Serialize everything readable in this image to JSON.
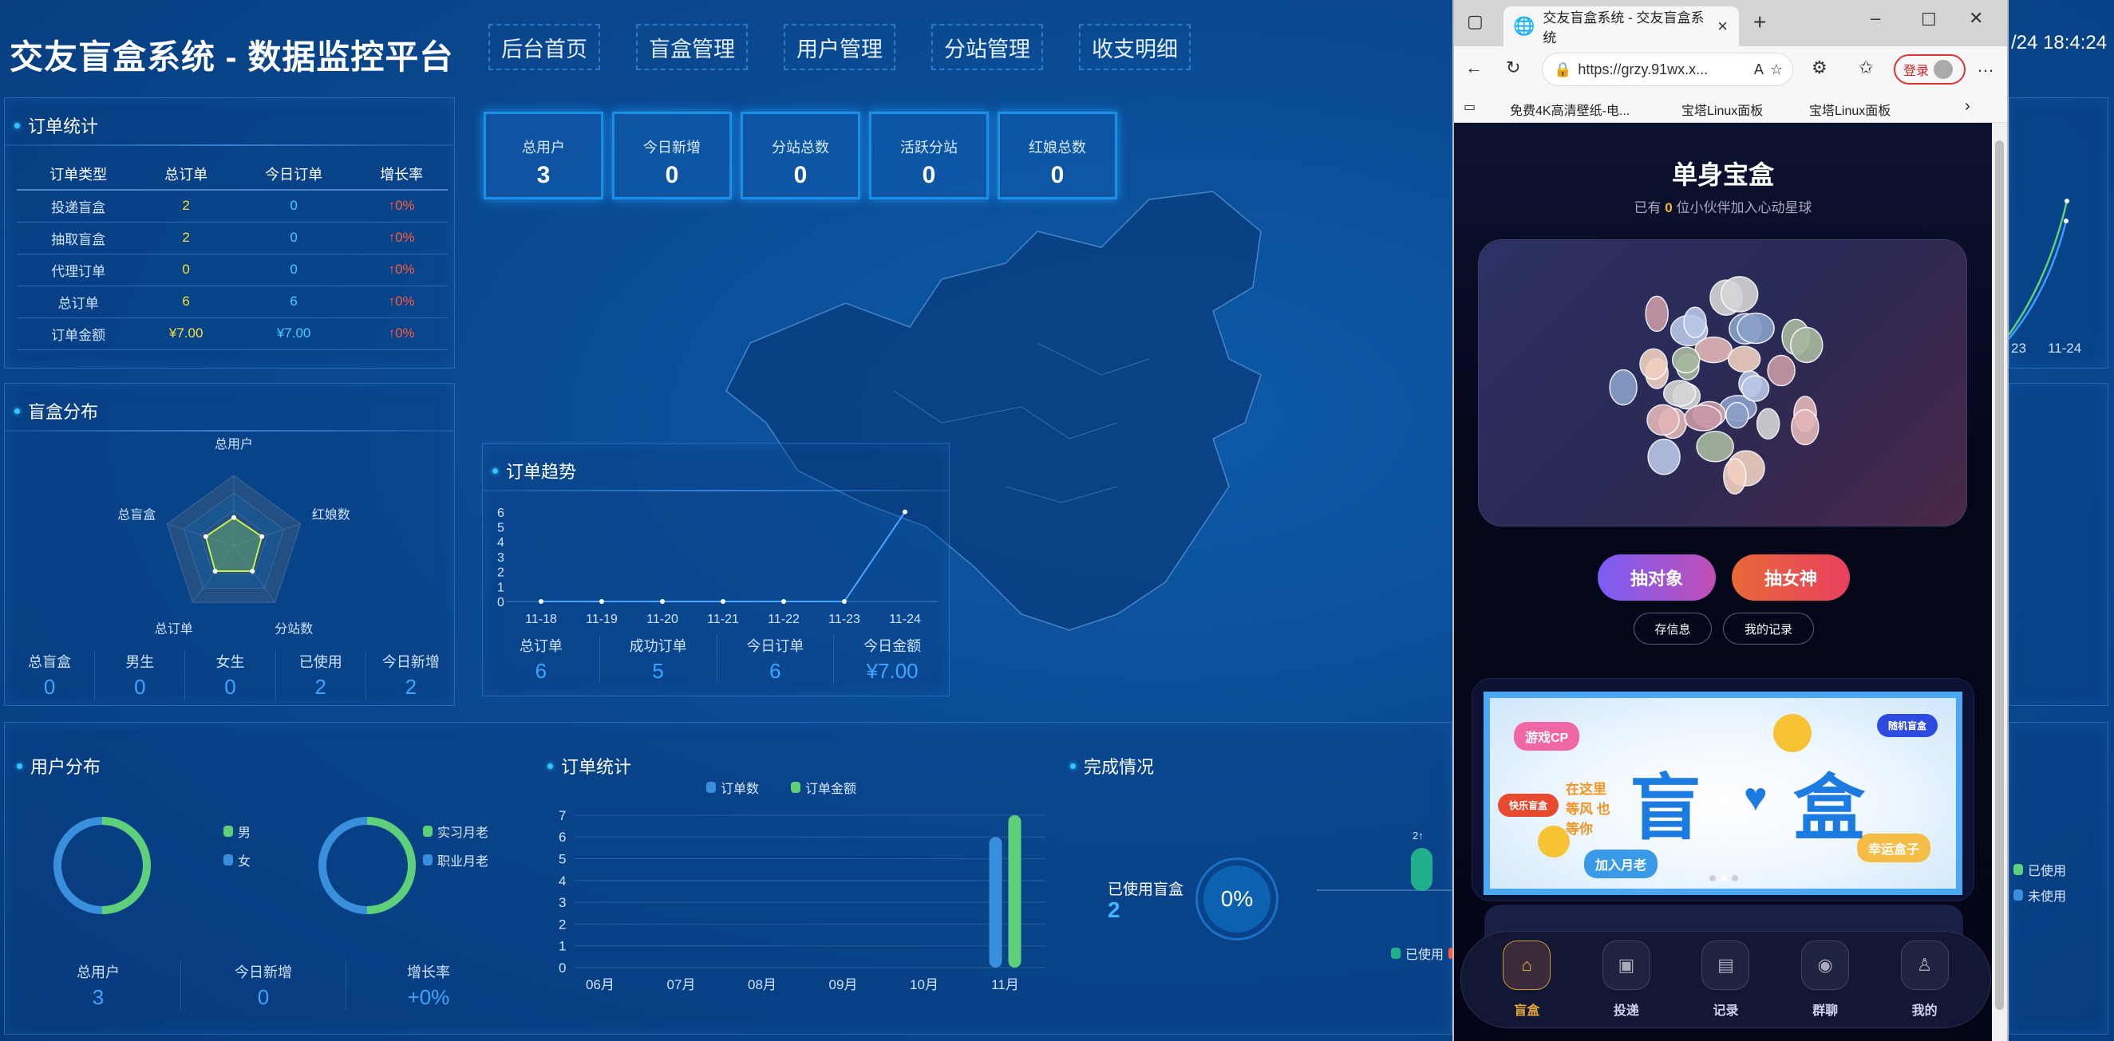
{
  "header": {
    "title": "交友盲盒系统 - 数据监控平台",
    "nav": [
      "后台首页",
      "盲盒管理",
      "用户管理",
      "分站管理",
      "收支明细"
    ],
    "datetime": "/24 18:4:24"
  },
  "order_stats": {
    "title": "订单统计",
    "columns": [
      "订单类型",
      "总订单",
      "今日订单",
      "增长率"
    ],
    "rows": [
      [
        "投递盲盒",
        "2",
        "0",
        "↑0%"
      ],
      [
        "抽取盲盒",
        "2",
        "0",
        "↑0%"
      ],
      [
        "代理订单",
        "0",
        "0",
        "↑0%"
      ],
      [
        "总订单",
        "6",
        "6",
        "↑0%"
      ],
      [
        "订单金额",
        "¥7.00",
        "¥7.00",
        "↑0%"
      ]
    ]
  },
  "box_dist": {
    "title": "盲盒分布",
    "radar_labels": [
      "总用户",
      "红娘数",
      "分站数",
      "总订单",
      "总盲盒"
    ],
    "radar_values": [
      0.4,
      0.42,
      0.45,
      0.45,
      0.42
    ],
    "stats": [
      {
        "label": "总盲盒",
        "value": "0"
      },
      {
        "label": "男生",
        "value": "0"
      },
      {
        "label": "女生",
        "value": "0"
      },
      {
        "label": "已使用",
        "value": "2"
      },
      {
        "label": "今日新增",
        "value": "2"
      }
    ]
  },
  "cards": [
    {
      "label": "总用户",
      "value": "3"
    },
    {
      "label": "今日新增",
      "value": "0"
    },
    {
      "label": "分站总数",
      "value": "0"
    },
    {
      "label": "活跃分站",
      "value": "0"
    },
    {
      "label": "红娘总数",
      "value": "0"
    }
  ],
  "trend": {
    "title": "订单趋势",
    "y_ticks": [
      "0",
      "1",
      "2",
      "3",
      "4",
      "5",
      "6"
    ],
    "x": [
      "11-18",
      "11-19",
      "11-20",
      "11-21",
      "11-22",
      "11-23",
      "11-24"
    ],
    "values": [
      0,
      0,
      0,
      0,
      0,
      0,
      6
    ],
    "stats": [
      {
        "label": "总订单",
        "value": "6"
      },
      {
        "label": "成功订单",
        "value": "5"
      },
      {
        "label": "今日订单",
        "value": "6"
      },
      {
        "label": "今日金额",
        "value": "¥7.00"
      }
    ]
  },
  "user_dist": {
    "title": "用户分布",
    "legend1": [
      "男",
      "女"
    ],
    "legend2": [
      "实习月老",
      "职业月老"
    ],
    "stats": [
      {
        "label": "总用户",
        "value": "3"
      },
      {
        "label": "今日新增",
        "value": "0"
      },
      {
        "label": "增长率",
        "value": "+0%"
      }
    ]
  },
  "bar": {
    "title": "订单统计",
    "legend": [
      "订单数",
      "订单金额"
    ],
    "y_ticks": [
      "0",
      "1",
      "2",
      "3",
      "4",
      "5",
      "6",
      "7"
    ],
    "categories": [
      "06月",
      "07月",
      "08月",
      "09月",
      "10月",
      "11月"
    ],
    "series": [
      {
        "name": "订单数",
        "values": [
          0,
          0,
          0,
          0,
          0,
          6
        ]
      },
      {
        "name": "订单金额",
        "values": [
          0,
          0,
          0,
          0,
          0,
          7
        ]
      }
    ]
  },
  "completion": {
    "title": "完成情况",
    "used_label": "已使用盲盒",
    "used_value": "2",
    "percent": "0%",
    "bar_label": "2↑",
    "legend": [
      "已使用"
    ]
  },
  "right_strip": {
    "x_labels": [
      "23",
      "11-24"
    ],
    "legend": [
      "已使用",
      "未使用"
    ]
  },
  "colors": {
    "accent": "#35c3ff",
    "green": "#5fd07a",
    "blue": "#3a8fdc",
    "red": "#ff5b3a",
    "yellow": "#f4e23a"
  },
  "browser": {
    "tab_title": "交友盲盒系统 - 交友盲盒系统",
    "url": "https://grzy.91wx.x...",
    "login": "登录",
    "bookmarks": [
      "免费4K高清壁纸-电...",
      "宝塔Linux面板",
      "宝塔Linux面板"
    ],
    "page": {
      "title": "单身宝盒",
      "sub_pre": "已有",
      "count": "0",
      "sub_post": "位小伙伴加入心动星球",
      "btn1": "抽对象",
      "btn2": "抽女神",
      "btn3": "存信息",
      "btn4": "我的记录",
      "banner": {
        "big1": "盲",
        "big2": "盒",
        "tags": [
          "游戏CP",
          "随机盲盒",
          "快乐盲盒",
          "加入月老",
          "幸运盒子"
        ],
        "slogan": "在这里 等风 也等你"
      },
      "nav": [
        {
          "label": "盲盒",
          "icon": "home-icon"
        },
        {
          "label": "投递",
          "icon": "send-icon"
        },
        {
          "label": "记录",
          "icon": "bag-icon"
        },
        {
          "label": "群聊",
          "icon": "user-circle-icon"
        },
        {
          "label": "我的",
          "icon": "person-icon"
        }
      ]
    }
  }
}
